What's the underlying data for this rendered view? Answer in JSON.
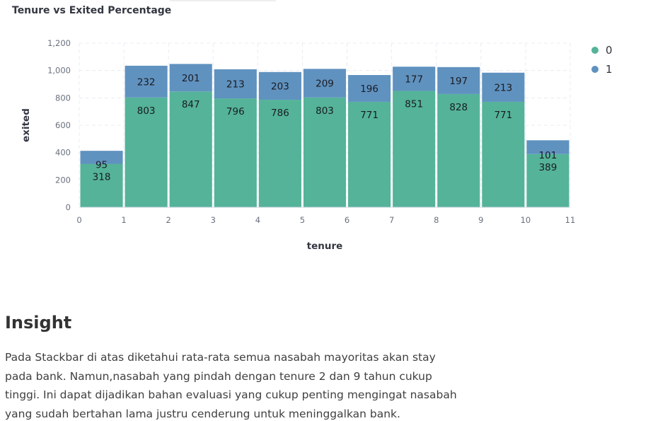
{
  "chart_data": {
    "type": "bar",
    "stacked": true,
    "title": "Tenure vs Exited Percentage",
    "xlabel": "tenure",
    "ylabel": "exited",
    "x_ticks": [
      "0",
      "1",
      "2",
      "3",
      "4",
      "5",
      "6",
      "7",
      "8",
      "9",
      "10",
      "11"
    ],
    "y_ticks": [
      "0",
      "200",
      "400",
      "600",
      "800",
      "1,000",
      "1,200"
    ],
    "ylim": [
      0,
      1200
    ],
    "xlim": [
      0,
      11
    ],
    "bin_edges": [
      0,
      1,
      2,
      3,
      4,
      5,
      6,
      7,
      8,
      9,
      10,
      11
    ],
    "grid": true,
    "legend_position": "right",
    "series": [
      {
        "name": "0",
        "color": "#54b399",
        "values": [
          318,
          803,
          847,
          796,
          786,
          803,
          771,
          851,
          828,
          771,
          389
        ]
      },
      {
        "name": "1",
        "color": "#6092c0",
        "values": [
          95,
          232,
          201,
          213,
          203,
          209,
          196,
          177,
          197,
          213,
          101
        ]
      }
    ]
  },
  "insight": {
    "heading": "Insight",
    "body": "Pada Stackbar di atas diketahui rata-rata semua nasabah mayoritas akan stay pada bank. Namun,nasabah yang pindah dengan tenure 2 dan 9 tahun cukup tinggi. Ini dapat dijadikan bahan evaluasi yang cukup penting mengingat nasabah yang sudah bertahan lama justru cenderung untuk meninggalkan bank."
  }
}
